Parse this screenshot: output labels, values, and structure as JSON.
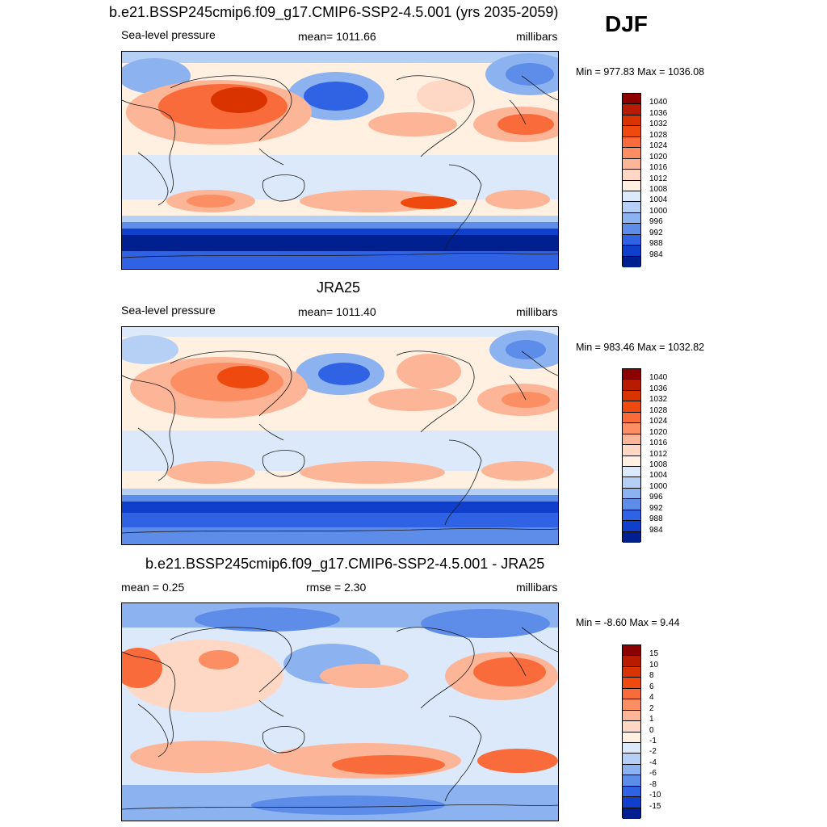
{
  "season": "DJF",
  "panels": [
    {
      "id": "model",
      "title": "b.e21.BSSP245cmip6.f09_g17.CMIP6-SSP2-4.5.001 (yrs 2035-2059)",
      "left_label": "Sea-level pressure",
      "center_label": "mean= 1011.66",
      "right_label": "millibars",
      "minmax": "Min = 977.83 Max = 1036.08"
    },
    {
      "id": "obs",
      "title": "JRA25",
      "left_label": "Sea-level pressure",
      "center_label": "mean= 1011.40",
      "right_label": "millibars",
      "minmax": "Min = 983.46 Max = 1032.82"
    },
    {
      "id": "diff",
      "title": "b.e21.BSSP245cmip6.f09_g17.CMIP6-SSP2-4.5.001 - JRA25",
      "left_label": "mean =   0.25",
      "center_label": "rmse =   2.30",
      "right_label": "millibars",
      "minmax": "Min =  -8.60 Max =   9.44"
    }
  ],
  "colorbars": {
    "slp": {
      "labels": [
        "1040",
        "1036",
        "1032",
        "1028",
        "1024",
        "1020",
        "1016",
        "1012",
        "1008",
        "1004",
        "1000",
        "996",
        "992",
        "988",
        "984"
      ],
      "colors": [
        "#8c0000",
        "#b81c00",
        "#d93300",
        "#ee4a10",
        "#f96b3a",
        "#fb8f63",
        "#fdb597",
        "#fed8c4",
        "#fff0e2",
        "#dce9fa",
        "#b5cff5",
        "#8cb2f0",
        "#5d8ce9",
        "#2f63e3",
        "#103fcc",
        "#00208f"
      ]
    },
    "diff": {
      "labels": [
        "15",
        "10",
        "8",
        "6",
        "4",
        "2",
        "1",
        "0",
        "-1",
        "-2",
        "-4",
        "-6",
        "-8",
        "-10",
        "-15"
      ],
      "colors": [
        "#8c0000",
        "#b81c00",
        "#d93300",
        "#ee4a10",
        "#f96b3a",
        "#fb8f63",
        "#fdb597",
        "#fed8c4",
        "#fff0e2",
        "#dce9fa",
        "#b5cff5",
        "#8cb2f0",
        "#5d8ce9",
        "#2f63e3",
        "#103fcc",
        "#00208f"
      ]
    }
  },
  "map_colors": {
    "ocean_neutral": "#fff0e2",
    "light_blue": "#dce9fa",
    "mid_blue": "#8cb2f0",
    "blue": "#2f63e3",
    "deep_blue": "#00208f",
    "light_red": "#fed8c4",
    "mid_red": "#fb8f63",
    "red": "#ee4a10",
    "coast": "#1a1a1a"
  }
}
